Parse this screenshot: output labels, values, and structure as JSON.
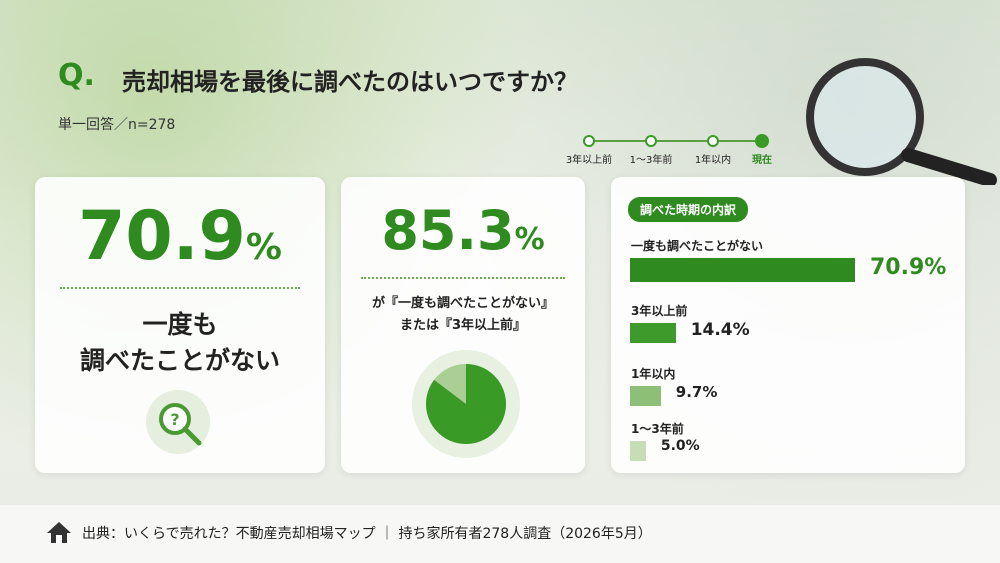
{
  "header": {
    "q_mark": "Q.",
    "title": "売却相場を最後に調べたのはいつですか？",
    "subtitle": "単一回答／n=278"
  },
  "timeline": [
    "3年以上前",
    "1〜3年前",
    "1年以内",
    "現在"
  ],
  "card1": {
    "value": 70.9,
    "unit": "%",
    "label_lines": [
      "一度も",
      "調べたことがない"
    ]
  },
  "card2": {
    "value": 85.3,
    "unit": "%",
    "caption_lines": [
      "が『一度も調べたことがない』",
      "または『3年以上前』"
    ]
  },
  "chart_data": {
    "type": "bar",
    "title": "調べた時期の内訳",
    "categories": [
      "一度も調べたことがない",
      "3年以上前",
      "1年以内",
      "1〜3年前"
    ],
    "values": [
      70.9,
      14.4,
      9.7,
      5.0
    ],
    "value_labels": [
      "70.9%",
      "14.4%",
      "9.7%",
      "5.0%"
    ],
    "colors": [
      "#2f8a1f",
      "#3f9a2c",
      "#8dbf77",
      "#c6ddb5"
    ]
  },
  "footer": "出典：いくらで売れた？不動産売却相場マップ ｜ 持ち家所有者278人調査（2026年5月）"
}
